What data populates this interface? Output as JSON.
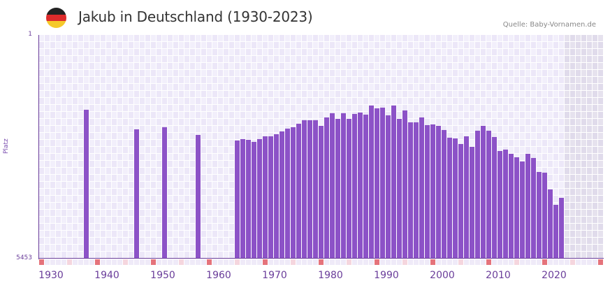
{
  "header": {
    "title": "Jakub in Deutschland (1930-2023)",
    "source": "Quelle: Baby-Vornamen.de",
    "flag_icon": "germany-flag-icon",
    "flag_colors": [
      "#222222",
      "#dd2b2b",
      "#f5c92b"
    ]
  },
  "colors": {
    "bar": "#8c52c7",
    "axis": "#6a3d9a",
    "cell_a": "#f2effb",
    "cell_b": "#ece7f8",
    "future_cell_a": "#e6e2ee",
    "future_cell_b": "#e0dbeb",
    "marker_decade": "#e5737b",
    "marker_half": "#f5d6de",
    "marker_default": "#efeaf8"
  },
  "chart_data": {
    "type": "bar",
    "title": "Jakub in Deutschland (1930-2023)",
    "xlabel": "",
    "ylabel": "Platz",
    "y_inverted": true,
    "ylim": [
      1,
      5453
    ],
    "xlim": [
      1930,
      2030
    ],
    "y_ticks": [
      "1",
      "5453"
    ],
    "x_ticks": [
      "1930",
      "1940",
      "1950",
      "1960",
      "1970",
      "1980",
      "1990",
      "2000",
      "2010",
      "2020"
    ],
    "grid": true,
    "legend": null,
    "future_shaded_from": 2024,
    "x": [
      1938,
      1947,
      1952,
      1958,
      1965,
      1966,
      1967,
      1968,
      1969,
      1970,
      1971,
      1972,
      1973,
      1974,
      1975,
      1976,
      1977,
      1978,
      1979,
      1980,
      1981,
      1982,
      1983,
      1984,
      1985,
      1986,
      1987,
      1988,
      1989,
      1990,
      1991,
      1992,
      1993,
      1994,
      1995,
      1996,
      1997,
      1998,
      1999,
      2000,
      2001,
      2002,
      2003,
      2004,
      2005,
      2006,
      2007,
      2008,
      2009,
      2010,
      2011,
      2012,
      2013,
      2014,
      2015,
      2016,
      2017,
      2018,
      2019,
      2020,
      2021,
      2022,
      2023
    ],
    "values": [
      1824,
      2301,
      2250,
      2438,
      2574,
      2540,
      2557,
      2608,
      2540,
      2472,
      2472,
      2421,
      2353,
      2285,
      2251,
      2165,
      2080,
      2080,
      2080,
      2216,
      2012,
      1910,
      2046,
      1910,
      2046,
      1927,
      1893,
      1944,
      1722,
      1790,
      1773,
      1961,
      1722,
      2046,
      1841,
      2131,
      2131,
      2012,
      2199,
      2182,
      2216,
      2319,
      2506,
      2523,
      2659,
      2472,
      2727,
      2336,
      2216,
      2336,
      2489,
      2830,
      2796,
      2898,
      2983,
      3085,
      2898,
      3000,
      3341,
      3358,
      3767,
      4142,
      3971
    ]
  }
}
